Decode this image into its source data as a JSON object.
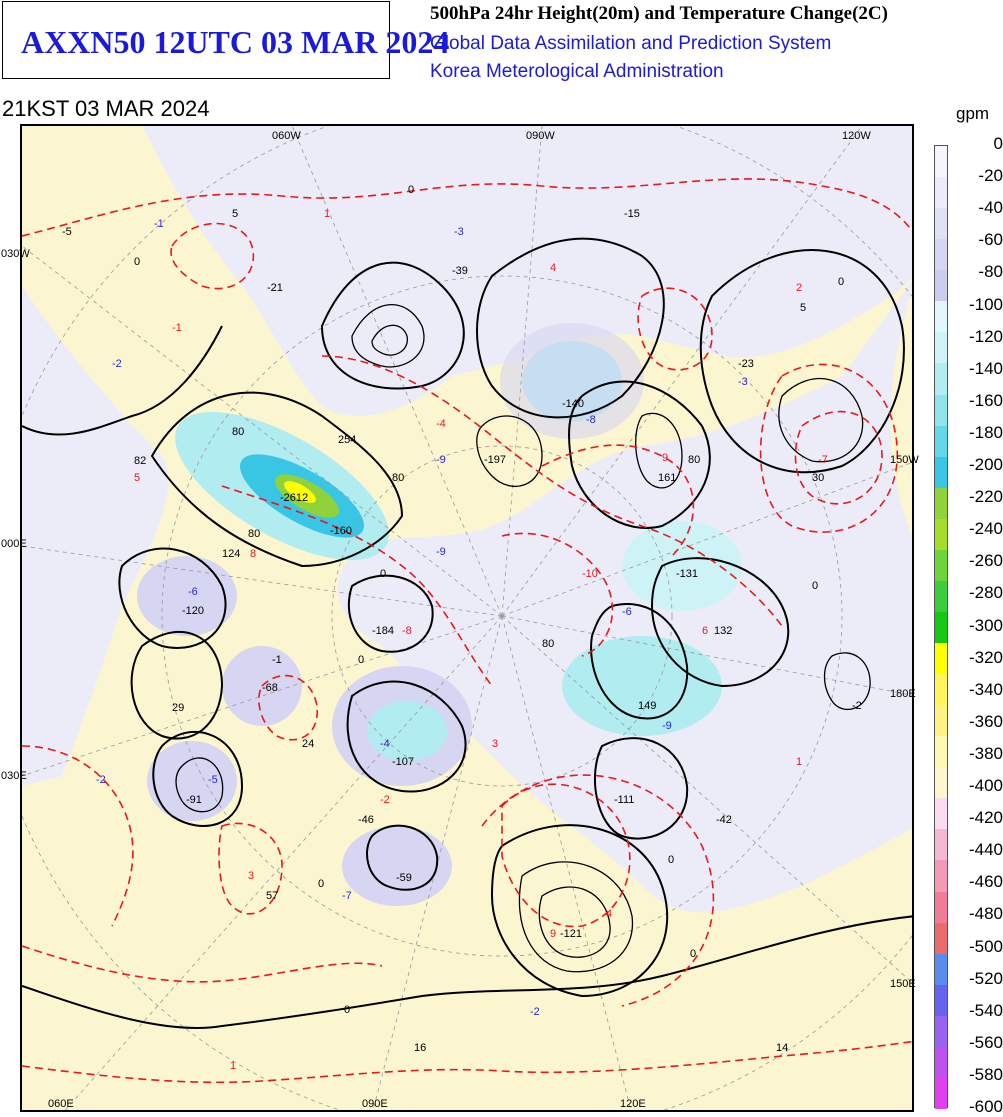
{
  "header": {
    "product_code": "AXXN50 12UTC 03 MAR 2024",
    "product_title": "500hPa 24hr Height(20m) and Temperature Change(2C)",
    "system_name": "Global Data Assimilation and Prediction System",
    "agency": "Korea Meterological Administration",
    "valid_time": "21KST 03 MAR 2024"
  },
  "map": {
    "top_longitudes": [
      "060W",
      "090W",
      "120W"
    ],
    "bottom_longitudes": [
      "060E",
      "090E",
      "120E"
    ],
    "left_longitudes": [
      "030W",
      "000E",
      "030E"
    ],
    "right_longitudes": [
      "150W",
      "180E",
      "150E"
    ],
    "height_change_labels": [
      "-5",
      "5",
      "-21",
      "-39",
      "-15",
      "5",
      "-140",
      "-23",
      "254",
      "-197",
      "161",
      "30",
      "82",
      "-2612",
      "-160",
      "124",
      "-131",
      "132",
      "-120",
      "-184",
      "149",
      "-2",
      "29",
      "-68",
      "24",
      "-107",
      "-91",
      "-46",
      "-111",
      "-42",
      "57",
      "-59",
      "-121",
      "16",
      "14"
    ],
    "temperature_change_labels": [
      "-1",
      "1",
      "-3",
      "4",
      "-2",
      "-1",
      "2",
      "-8",
      "-3",
      "-4",
      "-9",
      "-7",
      "5",
      "-9",
      "8",
      "-10",
      "-6",
      "-6",
      "-8",
      "6",
      "-9",
      "-4",
      "3",
      "-2",
      "-5",
      "1",
      "-2",
      "3",
      "-7",
      "9",
      "4",
      "-2",
      "1",
      "9"
    ],
    "contour_labels": [
      "0",
      "80",
      "80",
      "80",
      "0",
      "80",
      "0",
      "80",
      "-1",
      "0",
      "0",
      "0",
      "0",
      "0",
      "0",
      "0"
    ]
  },
  "colorbar": {
    "unit": "gpm",
    "labels": [
      "0",
      "-20",
      "-40",
      "-60",
      "-80",
      "-100",
      "-120",
      "-140",
      "-160",
      "-180",
      "-200",
      "-220",
      "-240",
      "-260",
      "-280",
      "-300",
      "-320",
      "-340",
      "-360",
      "-380",
      "-400",
      "-420",
      "-440",
      "-460",
      "-480",
      "-500",
      "-520",
      "-540",
      "-560",
      "-580",
      "-600"
    ],
    "colors": [
      "#f5f5fc",
      "#ececf8",
      "#e1e1f5",
      "#d6d6f2",
      "#ccccee",
      "#e2f7f9",
      "#cdf3f6",
      "#b0ecf0",
      "#8fe4ec",
      "#64d8e8",
      "#38c6e4",
      "#8fd23a",
      "#a6dd2a",
      "#6ed43c",
      "#3ccc3c",
      "#14c814",
      "#ffff00",
      "#fff45a",
      "#fff282",
      "#fff8b4",
      "#fbf6cf",
      "#fadbf0",
      "#f5b8d4",
      "#f39ab6",
      "#f07c95",
      "#ec6b6b",
      "#5a8cf0",
      "#6464f0",
      "#9664f0",
      "#c050f0",
      "#e040f0"
    ]
  }
}
